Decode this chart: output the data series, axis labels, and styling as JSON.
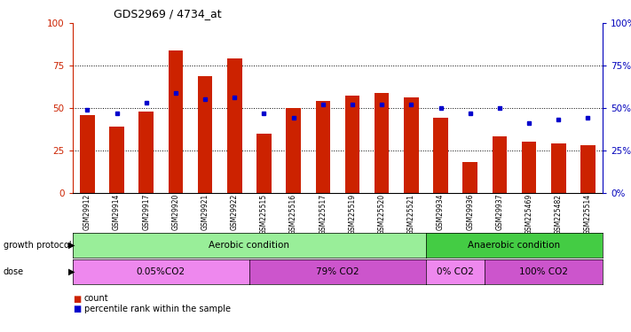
{
  "title": "GDS2969 / 4734_at",
  "samples": [
    "GSM29912",
    "GSM29914",
    "GSM29917",
    "GSM29920",
    "GSM29921",
    "GSM29922",
    "GSM225515",
    "GSM225516",
    "GSM225517",
    "GSM225519",
    "GSM225520",
    "GSM225521",
    "GSM29934",
    "GSM29936",
    "GSM29937",
    "GSM225469",
    "GSM225482",
    "GSM225514"
  ],
  "counts": [
    46,
    39,
    48,
    84,
    69,
    79,
    35,
    50,
    54,
    57,
    59,
    56,
    44,
    18,
    33,
    30,
    29,
    28
  ],
  "percentiles": [
    49,
    47,
    53,
    59,
    55,
    56,
    47,
    44,
    52,
    52,
    52,
    52,
    50,
    47,
    50,
    41,
    43,
    44
  ],
  "bar_color": "#cc2200",
  "dot_color": "#0000cc",
  "ylim": [
    0,
    100
  ],
  "grid_lines": [
    25,
    50,
    75
  ],
  "y_ticks": [
    0,
    25,
    50,
    75,
    100
  ],
  "growth_protocol_label": "growth protocol",
  "dose_label": "dose",
  "aerobic_label": "Aerobic condition",
  "anaerobic_label": "Anaerobic condition",
  "aerobic_color": "#99ee99",
  "anaerobic_color": "#44cc44",
  "dose_labels": [
    "0.05%CO2",
    "79% CO2",
    "0% CO2",
    "100% CO2"
  ],
  "dose_color_light": "#ee88ee",
  "dose_color_dark": "#cc55cc",
  "aerobic_samples_count": 12,
  "dose_splits": [
    6,
    6,
    2,
    4
  ],
  "legend_count_label": "count",
  "legend_percentile_label": "percentile rank within the sample",
  "background_color": "#ffffff",
  "plot_bg": "#ffffff",
  "right_axis_label_color": "#0000bb",
  "left_axis_label_color": "#cc2200",
  "fig_width": 7.11,
  "fig_height": 3.75
}
